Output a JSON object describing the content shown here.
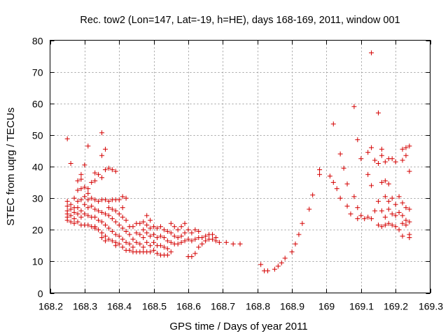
{
  "chart_data": {
    "type": "scatter",
    "title": "Rec. tow2 (Lon=147, Lat=-19, h=HE), days 168-169, 2011, window 001",
    "xlabel": "GPS time / Days of year 2011",
    "ylabel": "STEC from uqrg / TECUs",
    "xlim": [
      168.2,
      169.3
    ],
    "ylim": [
      0,
      80
    ],
    "xticks": [
      168.2,
      168.3,
      168.4,
      168.5,
      168.6,
      168.7,
      168.8,
      168.9,
      169.0,
      169.1,
      169.2,
      169.3
    ],
    "xtick_labels": [
      "168.2",
      "168.3",
      "168.4",
      "168.5",
      "168.6",
      "168.7",
      "168.8",
      "168.9",
      "169",
      "169.1",
      "169.2",
      "169.3"
    ],
    "yticks": [
      0,
      10,
      20,
      30,
      40,
      50,
      60,
      70,
      80
    ],
    "ytick_labels": [
      "0",
      "10",
      "20",
      "30",
      "40",
      "50",
      "60",
      "70",
      "80"
    ],
    "grid": true,
    "marker": "plus",
    "color": "#d40000",
    "points": [
      [
        168.25,
        48.8
      ],
      [
        168.25,
        29.0
      ],
      [
        168.25,
        27.5
      ],
      [
        168.25,
        26.0
      ],
      [
        168.25,
        25.0
      ],
      [
        168.25,
        24.0
      ],
      [
        168.25,
        23.0
      ],
      [
        168.26,
        41.0
      ],
      [
        168.26,
        28.0
      ],
      [
        168.26,
        26.5
      ],
      [
        168.26,
        24.5
      ],
      [
        168.26,
        22.5
      ],
      [
        168.27,
        30.0
      ],
      [
        168.27,
        27.0
      ],
      [
        168.27,
        25.5
      ],
      [
        168.27,
        23.5
      ],
      [
        168.27,
        22.0
      ],
      [
        168.28,
        35.5
      ],
      [
        168.28,
        32.5
      ],
      [
        168.28,
        29.0
      ],
      [
        168.28,
        27.0
      ],
      [
        168.28,
        25.0
      ],
      [
        168.28,
        22.5
      ],
      [
        168.29,
        37.5
      ],
      [
        168.29,
        36.0
      ],
      [
        168.29,
        33.0
      ],
      [
        168.29,
        29.5
      ],
      [
        168.29,
        26.0
      ],
      [
        168.29,
        24.0
      ],
      [
        168.29,
        21.5
      ],
      [
        168.3,
        40.5
      ],
      [
        168.3,
        33.5
      ],
      [
        168.3,
        30.5
      ],
      [
        168.3,
        28.0
      ],
      [
        168.3,
        25.0
      ],
      [
        168.3,
        21.5
      ],
      [
        168.31,
        46.5
      ],
      [
        168.31,
        33.0
      ],
      [
        168.31,
        31.5
      ],
      [
        168.31,
        29.5
      ],
      [
        168.31,
        27.0
      ],
      [
        168.31,
        24.5
      ],
      [
        168.31,
        21.5
      ],
      [
        168.32,
        35.0
      ],
      [
        168.32,
        30.0
      ],
      [
        168.32,
        27.5
      ],
      [
        168.32,
        24.0
      ],
      [
        168.32,
        21.0
      ],
      [
        168.33,
        38.0
      ],
      [
        168.33,
        35.5
      ],
      [
        168.33,
        29.5
      ],
      [
        168.33,
        26.5
      ],
      [
        168.33,
        24.0
      ],
      [
        168.33,
        21.0
      ],
      [
        168.33,
        20.5
      ],
      [
        168.34,
        37.5
      ],
      [
        168.34,
        29.0
      ],
      [
        168.34,
        26.0
      ],
      [
        168.34,
        23.0
      ],
      [
        168.34,
        20.0
      ],
      [
        168.35,
        50.7
      ],
      [
        168.35,
        43.5
      ],
      [
        168.35,
        36.5
      ],
      [
        168.35,
        29.5
      ],
      [
        168.35,
        25.5
      ],
      [
        168.35,
        22.5
      ],
      [
        168.35,
        19.0
      ],
      [
        168.35,
        17.5
      ],
      [
        168.36,
        45.5
      ],
      [
        168.36,
        39.0
      ],
      [
        168.36,
        29.5
      ],
      [
        168.36,
        25.0
      ],
      [
        168.36,
        21.5
      ],
      [
        168.36,
        18.0
      ],
      [
        168.36,
        16.5
      ],
      [
        168.37,
        39.5
      ],
      [
        168.37,
        29.0
      ],
      [
        168.37,
        27.0
      ],
      [
        168.37,
        24.5
      ],
      [
        168.37,
        20.5
      ],
      [
        168.37,
        17.0
      ],
      [
        168.38,
        39.0
      ],
      [
        168.38,
        29.5
      ],
      [
        168.38,
        26.5
      ],
      [
        168.38,
        23.5
      ],
      [
        168.38,
        19.5
      ],
      [
        168.38,
        16.5
      ],
      [
        168.39,
        38.5
      ],
      [
        168.39,
        29.5
      ],
      [
        168.39,
        26.0
      ],
      [
        168.39,
        22.5
      ],
      [
        168.39,
        18.5
      ],
      [
        168.39,
        16.0
      ],
      [
        168.39,
        15.0
      ],
      [
        168.4,
        29.5
      ],
      [
        168.4,
        25.0
      ],
      [
        168.4,
        21.5
      ],
      [
        168.4,
        18.0
      ],
      [
        168.4,
        15.5
      ],
      [
        168.41,
        30.5
      ],
      [
        168.41,
        27.0
      ],
      [
        168.41,
        24.0
      ],
      [
        168.41,
        20.5
      ],
      [
        168.41,
        17.0
      ],
      [
        168.41,
        14.5
      ],
      [
        168.42,
        30.0
      ],
      [
        168.42,
        23.0
      ],
      [
        168.42,
        19.5
      ],
      [
        168.42,
        16.0
      ],
      [
        168.42,
        13.5
      ],
      [
        168.43,
        21.0
      ],
      [
        168.43,
        18.5
      ],
      [
        168.43,
        15.5
      ],
      [
        168.43,
        13.5
      ],
      [
        168.44,
        21.0
      ],
      [
        168.44,
        17.0
      ],
      [
        168.44,
        14.5
      ],
      [
        168.44,
        13.0
      ],
      [
        168.45,
        22.0
      ],
      [
        168.45,
        19.0
      ],
      [
        168.45,
        16.0
      ],
      [
        168.45,
        13.0
      ],
      [
        168.46,
        22.0
      ],
      [
        168.46,
        18.5
      ],
      [
        168.46,
        15.5
      ],
      [
        168.46,
        13.0
      ],
      [
        168.47,
        22.5
      ],
      [
        168.47,
        20.0
      ],
      [
        168.47,
        17.5
      ],
      [
        168.47,
        14.5
      ],
      [
        168.47,
        13.0
      ],
      [
        168.48,
        24.5
      ],
      [
        168.48,
        21.5
      ],
      [
        168.48,
        19.0
      ],
      [
        168.48,
        16.0
      ],
      [
        168.48,
        13.0
      ],
      [
        168.49,
        23.0
      ],
      [
        168.49,
        20.5
      ],
      [
        168.49,
        18.0
      ],
      [
        168.49,
        15.0
      ],
      [
        168.49,
        13.0
      ],
      [
        168.5,
        21.0
      ],
      [
        168.5,
        18.5
      ],
      [
        168.5,
        16.0
      ],
      [
        168.5,
        13.5
      ],
      [
        168.51,
        20.5
      ],
      [
        168.51,
        17.5
      ],
      [
        168.51,
        15.0
      ],
      [
        168.51,
        12.5
      ],
      [
        168.52,
        21.0
      ],
      [
        168.52,
        18.0
      ],
      [
        168.52,
        15.0
      ],
      [
        168.52,
        12.0
      ],
      [
        168.53,
        20.0
      ],
      [
        168.53,
        17.5
      ],
      [
        168.53,
        14.5
      ],
      [
        168.53,
        12.0
      ],
      [
        168.54,
        19.5
      ],
      [
        168.54,
        16.5
      ],
      [
        168.54,
        14.0
      ],
      [
        168.54,
        12.0
      ],
      [
        168.55,
        22.0
      ],
      [
        168.55,
        19.0
      ],
      [
        168.55,
        16.0
      ],
      [
        168.55,
        13.0
      ],
      [
        168.56,
        21.0
      ],
      [
        168.56,
        18.0
      ],
      [
        168.56,
        15.5
      ],
      [
        168.57,
        20.0
      ],
      [
        168.57,
        17.5
      ],
      [
        168.57,
        15.5
      ],
      [
        168.58,
        21.0
      ],
      [
        168.58,
        18.0
      ],
      [
        168.58,
        16.0
      ],
      [
        168.59,
        22.0
      ],
      [
        168.59,
        19.0
      ],
      [
        168.59,
        16.5
      ],
      [
        168.6,
        20.0
      ],
      [
        168.6,
        17.0
      ],
      [
        168.6,
        11.5
      ],
      [
        168.61,
        19.0
      ],
      [
        168.61,
        16.5
      ],
      [
        168.61,
        11.5
      ],
      [
        168.62,
        20.0
      ],
      [
        168.62,
        17.0
      ],
      [
        168.62,
        12.5
      ],
      [
        168.63,
        19.5
      ],
      [
        168.63,
        17.5
      ],
      [
        168.63,
        14.5
      ],
      [
        168.64,
        17.5
      ],
      [
        168.64,
        15.5
      ],
      [
        168.65,
        18.0
      ],
      [
        168.65,
        16.5
      ],
      [
        168.66,
        18.5
      ],
      [
        168.66,
        17.0
      ],
      [
        168.67,
        18.5
      ],
      [
        168.67,
        17.0
      ],
      [
        168.68,
        17.5
      ],
      [
        168.68,
        16.5
      ],
      [
        168.69,
        16.0
      ],
      [
        168.71,
        16.0
      ],
      [
        168.73,
        15.5
      ],
      [
        168.75,
        15.5
      ],
      [
        168.81,
        9.0
      ],
      [
        168.82,
        7.0
      ],
      [
        168.83,
        7.0
      ],
      [
        168.85,
        7.5
      ],
      [
        168.86,
        8.5
      ],
      [
        168.87,
        9.5
      ],
      [
        168.88,
        11.0
      ],
      [
        168.9,
        13.0
      ],
      [
        168.91,
        15.5
      ],
      [
        168.92,
        18.5
      ],
      [
        168.93,
        22.0
      ],
      [
        168.95,
        26.5
      ],
      [
        168.96,
        31.0
      ],
      [
        168.98,
        37.5
      ],
      [
        168.98,
        39.0
      ],
      [
        169.01,
        37.0
      ],
      [
        169.02,
        53.5
      ],
      [
        169.02,
        35.0
      ],
      [
        169.03,
        33.0
      ],
      [
        169.04,
        44.0
      ],
      [
        169.04,
        30.0
      ],
      [
        169.05,
        39.5
      ],
      [
        169.06,
        34.5
      ],
      [
        169.06,
        27.5
      ],
      [
        169.07,
        25.0
      ],
      [
        169.08,
        59.0
      ],
      [
        169.08,
        30.5
      ],
      [
        169.09,
        48.5
      ],
      [
        169.09,
        27.0
      ],
      [
        169.09,
        23.5
      ],
      [
        169.1,
        42.5
      ],
      [
        169.1,
        24.5
      ],
      [
        169.11,
        23.5
      ],
      [
        169.12,
        44.5
      ],
      [
        169.12,
        37.5
      ],
      [
        169.12,
        24.0
      ],
      [
        169.13,
        76.0
      ],
      [
        169.13,
        46.0
      ],
      [
        169.13,
        34.0
      ],
      [
        169.13,
        23.5
      ],
      [
        169.14,
        42.0
      ],
      [
        169.14,
        26.0
      ],
      [
        169.15,
        57.0
      ],
      [
        169.15,
        41.0
      ],
      [
        169.15,
        29.0
      ],
      [
        169.15,
        21.5
      ],
      [
        169.16,
        45.5
      ],
      [
        169.16,
        43.5
      ],
      [
        169.16,
        35.0
      ],
      [
        169.16,
        26.0
      ],
      [
        169.16,
        21.0
      ],
      [
        169.17,
        41.5
      ],
      [
        169.17,
        35.5
      ],
      [
        169.17,
        30.5
      ],
      [
        169.17,
        24.0
      ],
      [
        169.17,
        21.5
      ],
      [
        169.18,
        42.5
      ],
      [
        169.18,
        34.5
      ],
      [
        169.18,
        29.0
      ],
      [
        169.18,
        26.5
      ],
      [
        169.18,
        22.0
      ],
      [
        169.19,
        42.5
      ],
      [
        169.19,
        30.0
      ],
      [
        169.19,
        25.0
      ],
      [
        169.19,
        21.5
      ],
      [
        169.2,
        41.5
      ],
      [
        169.2,
        28.0
      ],
      [
        169.2,
        24.5
      ],
      [
        169.2,
        21.0
      ],
      [
        169.21,
        30.5
      ],
      [
        169.21,
        25.5
      ],
      [
        169.21,
        20.0
      ],
      [
        169.22,
        45.5
      ],
      [
        169.22,
        42.0
      ],
      [
        169.22,
        28.5
      ],
      [
        169.22,
        24.5
      ],
      [
        169.22,
        22.0
      ],
      [
        169.22,
        18.0
      ],
      [
        169.23,
        46.0
      ],
      [
        169.23,
        43.5
      ],
      [
        169.23,
        27.0
      ],
      [
        169.23,
        23.0
      ],
      [
        169.23,
        21.5
      ],
      [
        169.24,
        46.5
      ],
      [
        169.24,
        38.5
      ],
      [
        169.24,
        26.5
      ],
      [
        169.24,
        22.5
      ],
      [
        169.24,
        18.5
      ],
      [
        169.24,
        17.5
      ]
    ]
  }
}
